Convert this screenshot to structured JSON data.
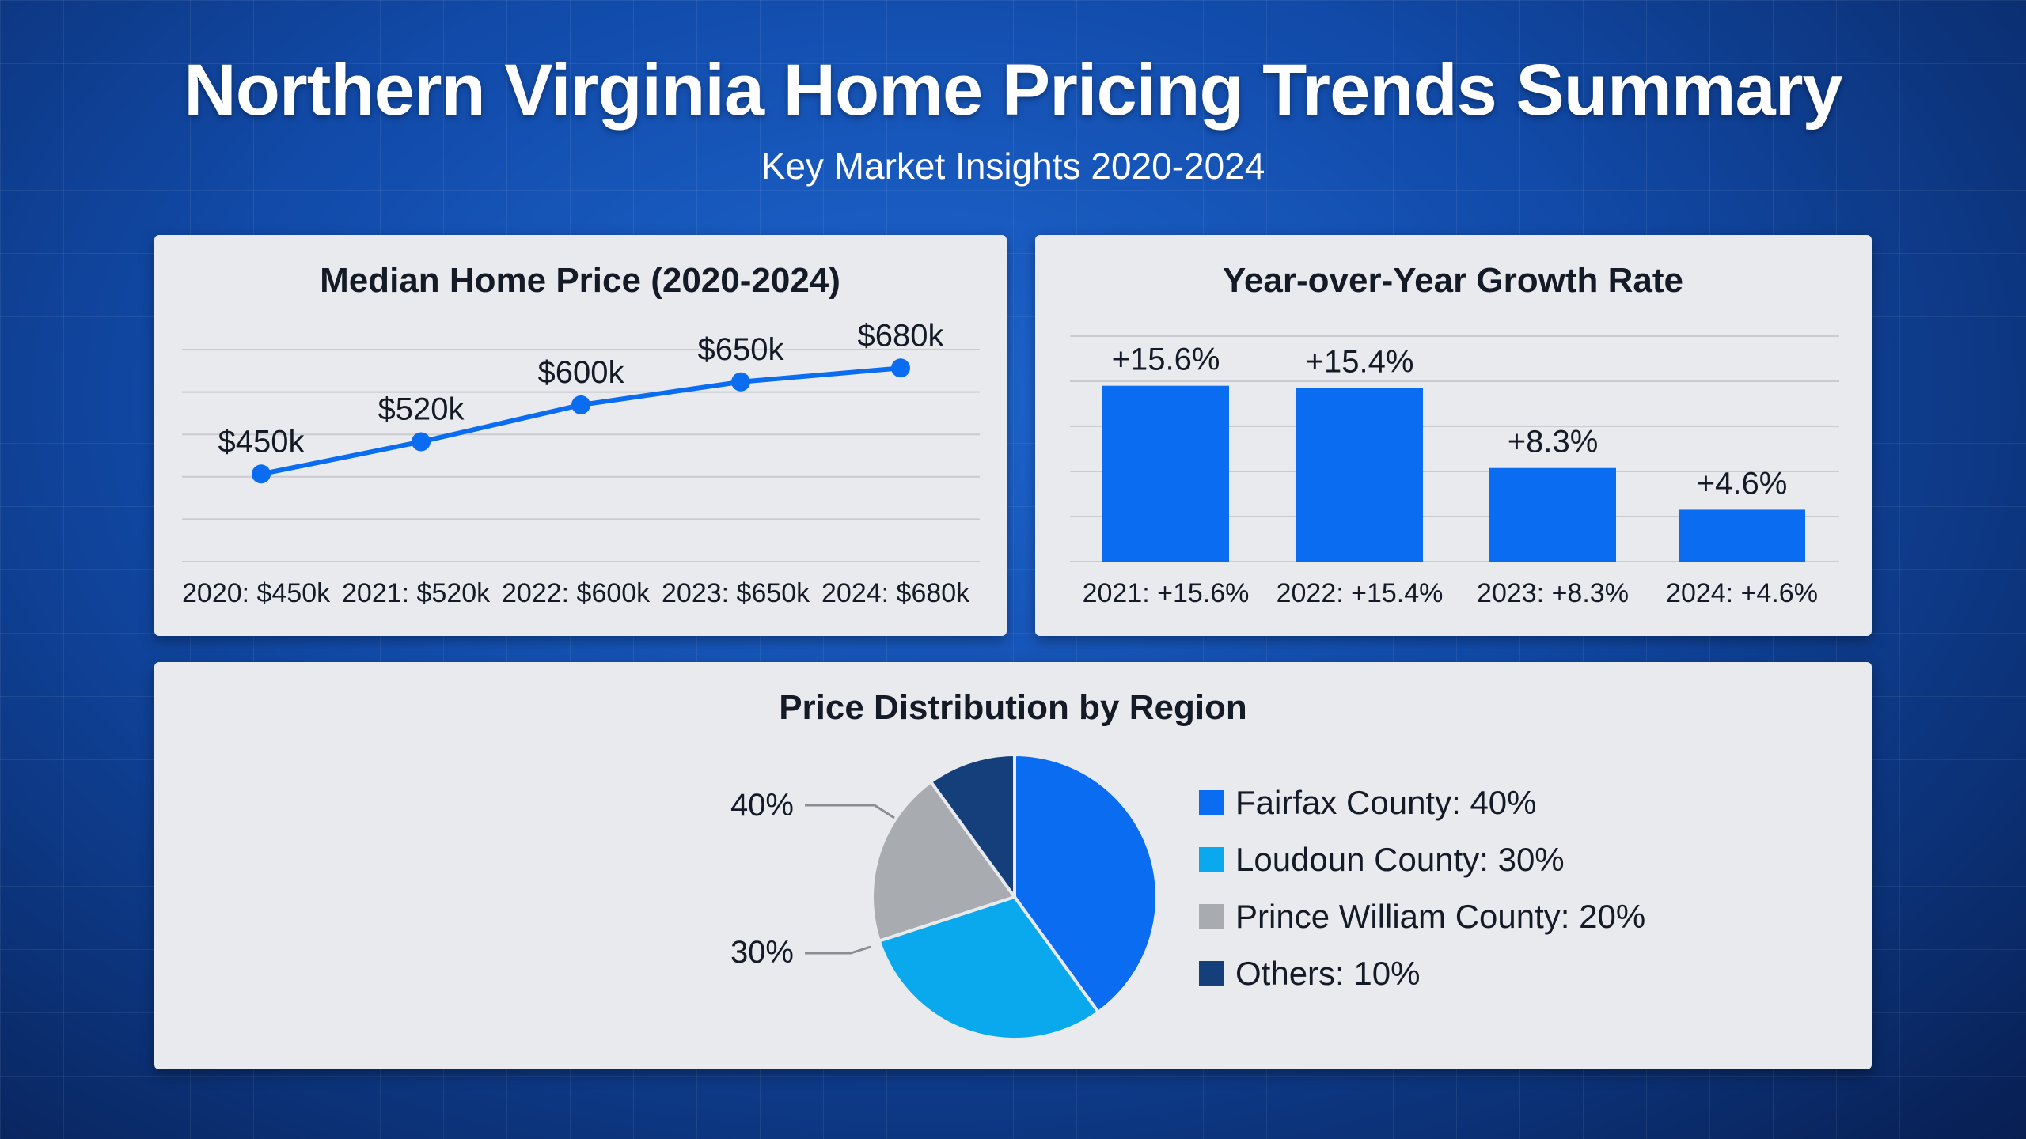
{
  "header": {
    "title": "Northern Virginia Home Pricing Trends Summary",
    "subtitle": "Key Market Insights 2020-2024"
  },
  "colors": {
    "blue": "#0a6cf0",
    "light_blue": "#0aa8ec",
    "gray": "#a8abb0",
    "navy": "#143f7a"
  },
  "chart_data": [
    {
      "type": "line",
      "title": "Median Home Price (2020-2024)",
      "x": [
        "2020",
        "2021",
        "2022",
        "2023",
        "2024"
      ],
      "values": [
        450,
        520,
        600,
        650,
        680
      ],
      "data_labels": [
        "$450k",
        "$520k",
        "$600k",
        "$650k",
        "$680k"
      ],
      "tick_labels": [
        "2020: $450k",
        "2021: $520k",
        "2022: $600k",
        "2023: $650k",
        "2024: $680k"
      ],
      "ylim": [
        260,
        720
      ],
      "grid": true
    },
    {
      "type": "bar",
      "title": "Year-over-Year Growth Rate",
      "categories": [
        "2021",
        "2022",
        "2023",
        "2024"
      ],
      "values": [
        15.6,
        15.4,
        8.3,
        4.6
      ],
      "data_labels": [
        "+15.6%",
        "+15.4%",
        "+8.3%",
        "+4.6%"
      ],
      "tick_labels": [
        "2021: +15.6%",
        "2022: +15.4%",
        "2023: +8.3%",
        "2024: +4.6%"
      ],
      "ylim": [
        0,
        20
      ],
      "grid": true
    },
    {
      "type": "pie",
      "title": "Price Distribution by Region",
      "slices": [
        {
          "label": "Fairfax County: 40%",
          "value": 40
        },
        {
          "label": "Loudoun County: 30%",
          "value": 30
        },
        {
          "label": "Prince William County: 20%",
          "value": 20
        },
        {
          "label": "Others: 10%",
          "value": 10
        }
      ],
      "annotations": [
        "40%",
        "30%"
      ],
      "legend": "right"
    }
  ]
}
